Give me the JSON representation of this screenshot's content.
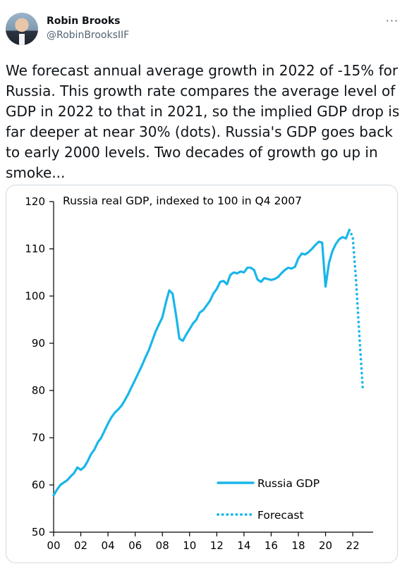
{
  "tweet": {
    "author_name": "Robin Brooks",
    "author_handle": "@RobinBrooksIIF",
    "more_icon": "more-horizontal-icon",
    "text": "We forecast annual average growth in 2022 of -15% for Russia. This growth rate compares the average level of GDP in 2022 to that in 2021, so the implied GDP drop is far deeper at near 30% (dots). Russia's GDP goes back to early 2000 levels. Two decades of growth go up in smoke..."
  },
  "colors": {
    "line": "#19b6ea",
    "axis": "#000000",
    "text": "#0f1419",
    "muted": "#536471"
  },
  "chart_data": {
    "type": "line",
    "title": "Russia real GDP, indexed to 100 in Q4 2007",
    "xlabel": "",
    "ylabel": "",
    "ylim": [
      50,
      120
    ],
    "xlim": [
      2000,
      2023.5
    ],
    "y_ticks": [
      50,
      60,
      70,
      80,
      90,
      100,
      110,
      120
    ],
    "x_tick_labels": [
      "00",
      "02",
      "04",
      "06",
      "08",
      "10",
      "12",
      "14",
      "16",
      "18",
      "20",
      "22"
    ],
    "x_tick_values": [
      2000,
      2002,
      2004,
      2006,
      2008,
      2010,
      2012,
      2014,
      2016,
      2018,
      2020,
      2022
    ],
    "grid": false,
    "legend_position": "bottom-right",
    "series": [
      {
        "name": "Russia GDP",
        "style": "solid",
        "x": [
          2000.0,
          2000.25,
          2000.5,
          2000.75,
          2001.0,
          2001.25,
          2001.5,
          2001.75,
          2002.0,
          2002.25,
          2002.5,
          2002.75,
          2003.0,
          2003.25,
          2003.5,
          2003.75,
          2004.0,
          2004.25,
          2004.5,
          2004.75,
          2005.0,
          2005.25,
          2005.5,
          2005.75,
          2006.0,
          2006.25,
          2006.5,
          2006.75,
          2007.0,
          2007.25,
          2007.5,
          2007.75,
          2008.0,
          2008.25,
          2008.5,
          2008.75,
          2009.0,
          2009.25,
          2009.5,
          2009.75,
          2010.0,
          2010.25,
          2010.5,
          2010.75,
          2011.0,
          2011.25,
          2011.5,
          2011.75,
          2012.0,
          2012.25,
          2012.5,
          2012.75,
          2013.0,
          2013.25,
          2013.5,
          2013.75,
          2014.0,
          2014.25,
          2014.5,
          2014.75,
          2015.0,
          2015.25,
          2015.5,
          2015.75,
          2016.0,
          2016.25,
          2016.5,
          2016.75,
          2017.0,
          2017.25,
          2017.5,
          2017.75,
          2018.0,
          2018.25,
          2018.5,
          2018.75,
          2019.0,
          2019.25,
          2019.5,
          2019.75,
          2020.0,
          2020.25,
          2020.5,
          2020.75,
          2021.0,
          2021.25,
          2021.5,
          2021.75
        ],
        "y": [
          57.8,
          59.0,
          60.0,
          60.5,
          61.0,
          61.8,
          62.5,
          63.7,
          63.2,
          63.8,
          65.0,
          66.5,
          67.5,
          69.0,
          70.0,
          71.5,
          73.0,
          74.3,
          75.3,
          76.0,
          76.8,
          78.0,
          79.3,
          80.8,
          82.3,
          83.8,
          85.3,
          87.0,
          88.5,
          90.5,
          92.5,
          94.0,
          95.5,
          98.5,
          101.2,
          100.5,
          96.0,
          91.0,
          90.5,
          91.8,
          93.0,
          94.2,
          95.0,
          96.5,
          97.0,
          98.0,
          99.0,
          100.5,
          101.5,
          103.0,
          103.2,
          102.5,
          104.5,
          105.0,
          104.8,
          105.2,
          105.0,
          106.0,
          106.0,
          105.5,
          103.5,
          103.0,
          103.8,
          103.6,
          103.4,
          103.6,
          104.0,
          104.8,
          105.5,
          106.0,
          105.8,
          106.2,
          108.0,
          109.0,
          108.8,
          109.3,
          110.0,
          110.8,
          111.5,
          111.3,
          102.0,
          107.0,
          109.5,
          111.0,
          112.0,
          112.5,
          112.2,
          114.0
        ]
      },
      {
        "name": "Forecast",
        "style": "dotted",
        "x": [
          2021.75,
          2022.0,
          2022.25,
          2022.5,
          2022.75
        ],
        "y": [
          114.0,
          112.5,
          103.0,
          91.0,
          80.0
        ]
      }
    ]
  }
}
